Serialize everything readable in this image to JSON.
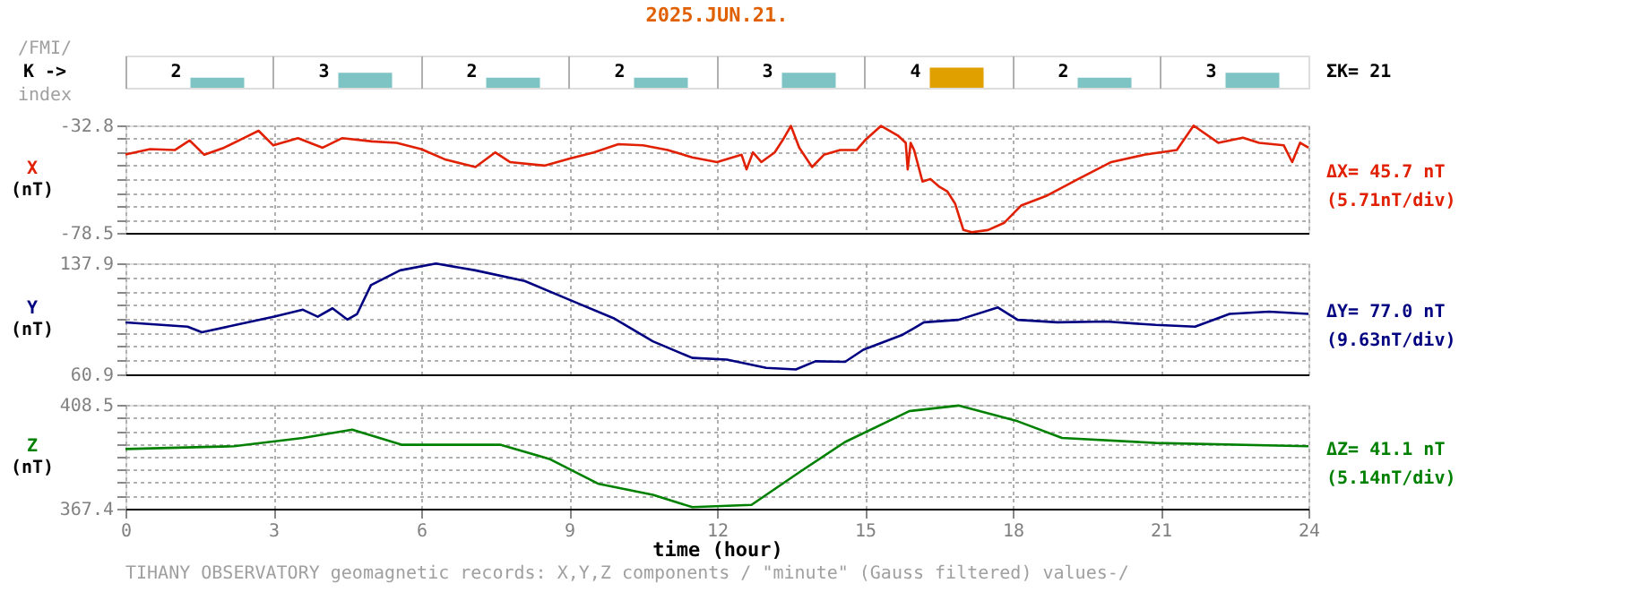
{
  "chart_data": [
    {
      "type": "bar",
      "title": "2025.JUN.21.",
      "ylabel": "K ->",
      "categories": [
        null,
        null,
        null,
        null,
        null,
        null,
        null,
        null
      ],
      "values": [
        2,
        3,
        2,
        2,
        3,
        4,
        2,
        3
      ],
      "colors": [
        "#7fc4c4",
        "#7fc4c4",
        "#7fc4c4",
        "#7fc4c4",
        "#7fc4c4",
        "#e0a000",
        "#7fc4c4",
        "#7fc4c4"
      ],
      "data_labels": true,
      "annotations": [
        "/FMI/",
        "index",
        "ΣK= 21"
      ],
      "tick_labels": false
    },
    {
      "type": "line",
      "ylabel": "X (nT)",
      "xlim": [
        0,
        24
      ],
      "xticks": [
        0,
        3,
        6,
        9,
        12,
        15,
        18,
        21,
        24
      ],
      "ylim": [
        -78.5,
        -32.8
      ],
      "yticks": [
        -32.8,
        {
          "value": -38.5,
          "label": null
        },
        {
          "value": -44.2,
          "label": null
        },
        {
          "value": -49.9,
          "label": null
        },
        {
          "value": -55.7,
          "label": null
        },
        {
          "value": -61.4,
          "label": null
        },
        {
          "value": -67.1,
          "label": null
        },
        {
          "value": -72.8,
          "label": null
        },
        -78.5
      ],
      "grid": true,
      "tick_labels": "y",
      "annotations": [
        "ΔX= 45.7 nT",
        "(5.71nT/div)"
      ],
      "series": [
        {
          "color": "#e02000",
          "type": "line",
          "x": [
            0,
            0.5,
            1.0,
            1.3,
            1.6,
            2.0,
            2.4,
            2.7,
            3.0,
            3.5,
            4.0,
            4.4,
            5.0,
            5.5,
            6.0,
            6.5,
            7.1,
            7.5,
            7.8,
            8.5,
            9.0,
            9.5,
            10.0,
            10.5,
            11.0,
            11.5,
            12.0,
            12.5,
            12.6,
            12.73,
            12.9,
            13.17,
            13.33,
            13.5,
            13.67,
            13.93,
            14.17,
            14.5,
            14.83,
            15.0,
            15.33,
            15.67,
            15.83,
            15.87,
            15.93,
            16.0,
            16.17,
            16.33,
            16.5,
            16.67,
            16.83,
            17.0,
            17.17,
            17.5,
            17.83,
            18.17,
            18.67,
            19.33,
            20.0,
            20.67,
            21.33,
            21.67,
            22.17,
            22.67,
            23.0,
            23.5,
            23.67,
            23.83,
            24.0
          ],
          "values": [
            -45.2,
            -42.9,
            -43.3,
            -39.2,
            -45.3,
            -42.3,
            -38.2,
            -35.1,
            -41.3,
            -38.2,
            -42.3,
            -38.2,
            -39.6,
            -40.2,
            -42.9,
            -47.4,
            -50.5,
            -44.3,
            -48.4,
            -49.9,
            -47.0,
            -44.3,
            -40.8,
            -41.3,
            -43.3,
            -46.4,
            -48.4,
            -45.3,
            -51.5,
            -44.3,
            -48.4,
            -44.3,
            -39.2,
            -33.0,
            -42.3,
            -50.5,
            -45.3,
            -43.3,
            -43.3,
            -39.2,
            -33.0,
            -37.1,
            -40.2,
            -51.5,
            -40.2,
            -43.3,
            -56.7,
            -55.6,
            -58.7,
            -60.8,
            -66.0,
            -77.3,
            -78.2,
            -77.3,
            -74.2,
            -66.9,
            -62.9,
            -55.6,
            -48.4,
            -45.3,
            -43.3,
            -32.9,
            -40.2,
            -38.0,
            -40.2,
            -41.3,
            -48.4,
            -40.2,
            -42.3
          ]
        }
      ]
    },
    {
      "type": "line",
      "ylabel": "Y (nT)",
      "xlim": [
        0,
        24
      ],
      "xticks": [
        0,
        3,
        6,
        9,
        12,
        15,
        18,
        21,
        24
      ],
      "ylim": [
        60.9,
        137.9
      ],
      "yticks": [
        {
          "value": 60.9,
          "label": "60.9"
        },
        {
          "value": 70.5,
          "label": null
        },
        {
          "value": 80.2,
          "label": null
        },
        {
          "value": 89.7,
          "label": null
        },
        {
          "value": 99.4,
          "label": null
        },
        {
          "value": 109.0,
          "label": null
        },
        {
          "value": 118.6,
          "label": null
        },
        {
          "value": 128.3,
          "label": null
        },
        137.9
      ],
      "grid": true,
      "tick_labels": "y",
      "annotations": [
        "ΔY= 77.0 nT",
        "(9.63nT/div)"
      ],
      "series": [
        {
          "color": "#000080",
          "type": "line",
          "x": [
            0,
            1.26,
            1.55,
            2.24,
            3.02,
            3.6,
            3.9,
            4.2,
            4.5,
            4.7,
            4.98,
            5.57,
            6.3,
            7.1,
            8.1,
            9.1,
            9.9,
            10.7,
            11.5,
            12.2,
            13.0,
            13.6,
            14.0,
            14.6,
            14.97,
            15.77,
            16.2,
            16.9,
            17.7,
            18.1,
            18.9,
            19.9,
            20.9,
            21.7,
            22.4,
            23.2,
            24.0
          ],
          "values": [
            96.9,
            94.0,
            90.1,
            95.2,
            101.0,
            105.7,
            100.9,
            106.7,
            98.9,
            102.8,
            122.8,
            133.0,
            137.7,
            133.0,
            125.6,
            111.3,
            99.9,
            83.8,
            72.3,
            71.1,
            65.4,
            64.3,
            70.0,
            69.6,
            78.0,
            88.4,
            97.0,
            98.7,
            107.3,
            98.7,
            97.0,
            97.5,
            95.2,
            94.0,
            102.8,
            104.4,
            102.8
          ]
        }
      ]
    },
    {
      "type": "line",
      "ylabel": "Z (nT)",
      "xlabel": "time (hour)",
      "xlim": [
        0,
        24
      ],
      "xticks": [
        0,
        3,
        6,
        9,
        12,
        15,
        18,
        21,
        24
      ],
      "ylim": [
        367.4,
        408.5
      ],
      "yticks": [
        367.4,
        {
          "value": 372.5,
          "label": null
        },
        {
          "value": 377.7,
          "label": null
        },
        {
          "value": 382.8,
          "label": null
        },
        {
          "value": 388.0,
          "label": null
        },
        {
          "value": 393.1,
          "label": null
        },
        {
          "value": 398.2,
          "label": null
        },
        {
          "value": 403.4,
          "label": null
        },
        408.5
      ],
      "grid": true,
      "annotations": [
        "ΔZ= 41.1 nT",
        "(5.14nT/div)",
        "TIHANY OBSERVATORY   geomagnetic records:  X,Y,Z  components   / \"minute\" (Gauss filtered) values-/"
      ],
      "series": [
        {
          "color": "#008000",
          "type": "line",
          "x": [
            0,
            2.2,
            3.6,
            4.6,
            5.6,
            7.6,
            8.6,
            9.6,
            10.7,
            11.5,
            12.7,
            13.7,
            14.6,
            15.9,
            16.9,
            18.1,
            19.0,
            20.9,
            24.0
          ],
          "values": [
            391.0,
            392.1,
            395.4,
            398.7,
            392.7,
            392.7,
            387.1,
            377.2,
            372.9,
            368.0,
            368.9,
            382.2,
            393.8,
            406.0,
            408.2,
            402.0,
            395.4,
            393.4,
            392.1
          ]
        }
      ]
    }
  ]
}
